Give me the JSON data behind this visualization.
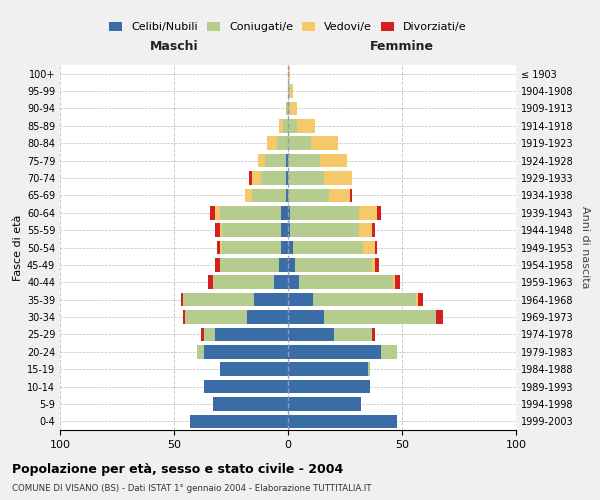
{
  "age_groups": [
    "0-4",
    "5-9",
    "10-14",
    "15-19",
    "20-24",
    "25-29",
    "30-34",
    "35-39",
    "40-44",
    "45-49",
    "50-54",
    "55-59",
    "60-64",
    "65-69",
    "70-74",
    "75-79",
    "80-84",
    "85-89",
    "90-94",
    "95-99",
    "100+"
  ],
  "birth_years": [
    "1999-2003",
    "1994-1998",
    "1989-1993",
    "1984-1988",
    "1979-1983",
    "1974-1978",
    "1969-1973",
    "1964-1968",
    "1959-1963",
    "1954-1958",
    "1949-1953",
    "1944-1948",
    "1939-1943",
    "1934-1938",
    "1929-1933",
    "1924-1928",
    "1919-1923",
    "1914-1918",
    "1909-1913",
    "1904-1908",
    "≤ 1903"
  ],
  "colors": {
    "celibi": "#3a6ca8",
    "coniugati": "#b5cc8e",
    "vedovi": "#f5c96a",
    "divorziati": "#d42020"
  },
  "maschi": {
    "celibi": [
      43,
      33,
      37,
      30,
      37,
      32,
      18,
      15,
      6,
      4,
      3,
      3,
      3,
      1,
      1,
      1,
      0,
      0,
      0,
      0,
      0
    ],
    "coniugati": [
      0,
      0,
      0,
      0,
      3,
      5,
      27,
      31,
      27,
      26,
      26,
      26,
      27,
      15,
      11,
      9,
      5,
      2,
      1,
      0,
      0
    ],
    "vedovi": [
      0,
      0,
      0,
      0,
      0,
      0,
      0,
      0,
      0,
      0,
      1,
      1,
      2,
      3,
      4,
      3,
      4,
      2,
      0,
      0,
      0
    ],
    "divorziati": [
      0,
      0,
      0,
      0,
      0,
      1,
      1,
      1,
      2,
      2,
      1,
      2,
      2,
      0,
      1,
      0,
      0,
      0,
      0,
      0,
      0
    ]
  },
  "femmine": {
    "celibi": [
      48,
      32,
      36,
      35,
      41,
      20,
      16,
      11,
      5,
      3,
      2,
      1,
      1,
      0,
      0,
      0,
      0,
      0,
      0,
      0,
      0
    ],
    "coniugati": [
      0,
      0,
      0,
      1,
      7,
      17,
      49,
      45,
      41,
      34,
      31,
      30,
      30,
      18,
      16,
      14,
      10,
      4,
      1,
      1,
      0
    ],
    "vedovi": [
      0,
      0,
      0,
      0,
      0,
      0,
      0,
      1,
      1,
      1,
      5,
      6,
      8,
      9,
      12,
      12,
      12,
      8,
      3,
      1,
      1
    ],
    "divorziati": [
      0,
      0,
      0,
      0,
      0,
      1,
      3,
      2,
      2,
      2,
      1,
      1,
      2,
      1,
      0,
      0,
      0,
      0,
      0,
      0,
      0
    ]
  },
  "title_main": "Popolazione per età, sesso e stato civile - 2004",
  "title_sub": "COMUNE DI VISANO (BS) - Dati ISTAT 1° gennaio 2004 - Elaborazione TUTTITALIA.IT",
  "xlabel_left": "Maschi",
  "xlabel_right": "Femmine",
  "ylabel_left": "Fasce di età",
  "ylabel_right": "Anni di nascita",
  "xlim": 100,
  "bg_color": "#f0f0f0",
  "plot_bg": "#ffffff",
  "legend_labels": [
    "Celibi/Nubili",
    "Coniugati/e",
    "Vedovi/e",
    "Divorziati/e"
  ]
}
